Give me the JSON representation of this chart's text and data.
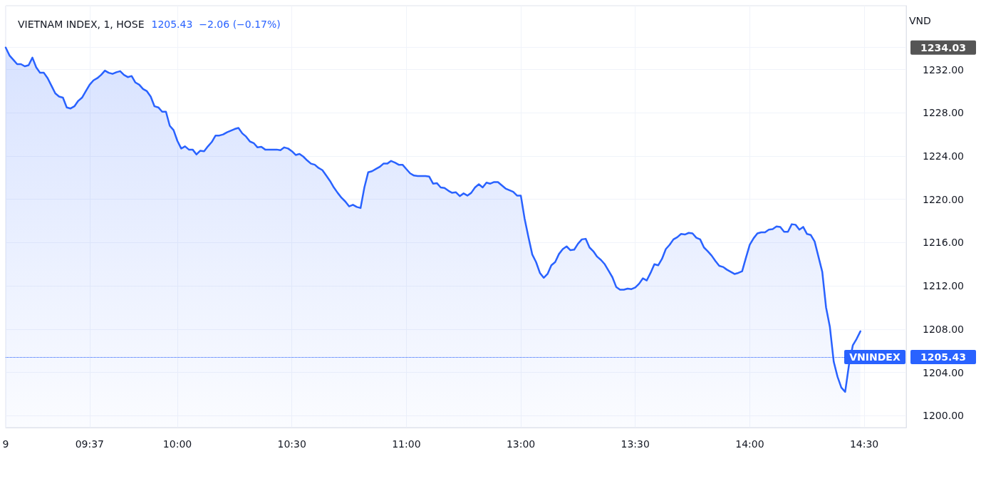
{
  "chart_data": {
    "type": "area",
    "title": "VIETNAM INDEX, 1, HOSE",
    "subtitle": "1205.43  −2.06 (−0.17%)",
    "ylabel": "VND",
    "categories": [
      "9",
      null,
      null,
      null,
      null,
      null,
      null,
      null,
      null,
      null,
      null,
      null,
      null,
      null,
      null,
      null,
      null,
      null,
      null,
      null,
      null,
      null,
      "09:37",
      null,
      null,
      null,
      null,
      null,
      null,
      null,
      null,
      null,
      null,
      null,
      null,
      null,
      null,
      null,
      null,
      null,
      null,
      null,
      null,
      null,
      null,
      "10:00",
      null,
      null,
      null,
      null,
      null,
      null,
      null,
      null,
      null,
      null,
      null,
      null,
      null,
      null,
      null,
      null,
      null,
      null,
      null,
      null,
      null,
      null,
      null,
      null,
      null,
      null,
      null,
      null,
      null,
      "10:30",
      null,
      null,
      null,
      null,
      null,
      null,
      null,
      null,
      null,
      null,
      null,
      null,
      null,
      null,
      null,
      null,
      null,
      null,
      null,
      null,
      null,
      null,
      null,
      null,
      null,
      null,
      null,
      null,
      null,
      "11:00",
      null,
      null,
      null,
      null,
      null,
      null,
      null,
      null,
      null,
      null,
      null,
      null,
      null,
      null,
      null,
      null,
      null,
      null,
      null,
      null,
      null,
      null,
      null,
      null,
      null,
      null,
      null,
      null,
      null,
      "13:00",
      null,
      null,
      null,
      null,
      null,
      null,
      null,
      null,
      null,
      null,
      null,
      null,
      null,
      null,
      null,
      null,
      null,
      null,
      null,
      null,
      null,
      null,
      null,
      null,
      null,
      null,
      null,
      null,
      null,
      "13:30",
      null,
      null,
      null,
      null,
      null,
      null,
      null,
      null,
      null,
      null,
      null,
      null,
      null,
      null,
      null,
      null,
      null,
      null,
      null,
      null,
      null,
      null,
      null,
      null,
      null,
      null,
      null,
      null,
      null,
      "14:00",
      null,
      null,
      null,
      null,
      null,
      null,
      null,
      null,
      null,
      null,
      null,
      null,
      null,
      null,
      null,
      null,
      null,
      null,
      null,
      null,
      null,
      null,
      null,
      null,
      null,
      null,
      null,
      null,
      null,
      "14:30",
      null,
      null,
      null,
      null,
      null,
      null,
      null,
      null,
      null,
      null,
      null
    ],
    "series": [
      {
        "color": "#2962ff",
        "values": [
          1234.03,
          1233.3,
          1232.9,
          1232.5,
          1232.5,
          1232.3,
          1232.4,
          1233.1,
          1232.2,
          1231.7,
          1231.7,
          1231.2,
          1230.5,
          1229.8,
          1229.5,
          1229.4,
          1228.5,
          1228.4,
          1228.6,
          1229.1,
          1229.4,
          1230.0,
          1230.6,
          1231.0,
          1231.2,
          1231.5,
          1231.9,
          1231.7,
          1231.6,
          1231.75,
          1231.85,
          1231.5,
          1231.3,
          1231.4,
          1230.8,
          1230.6,
          1230.2,
          1230.0,
          1229.5,
          1228.6,
          1228.5,
          1228.1,
          1228.1,
          1226.8,
          1226.4,
          1225.4,
          1224.7,
          1224.9,
          1224.6,
          1224.6,
          1224.15,
          1224.5,
          1224.45,
          1224.9,
          1225.3,
          1225.9,
          1225.9,
          1226.0,
          1226.2,
          1226.35,
          1226.5,
          1226.6,
          1226.1,
          1225.8,
          1225.35,
          1225.2,
          1224.8,
          1224.85,
          1224.6,
          1224.6,
          1224.6,
          1224.6,
          1224.55,
          1224.8,
          1224.7,
          1224.45,
          1224.1,
          1224.2,
          1223.95,
          1223.6,
          1223.3,
          1223.2,
          1222.9,
          1222.7,
          1222.2,
          1221.7,
          1221.1,
          1220.6,
          1220.15,
          1219.8,
          1219.35,
          1219.5,
          1219.3,
          1219.2,
          1221.1,
          1222.5,
          1222.6,
          1222.8,
          1223.0,
          1223.3,
          1223.3,
          1223.55,
          1223.4,
          1223.2,
          1223.2,
          1222.8,
          1222.4,
          1222.2,
          1222.15,
          1222.15,
          1222.15,
          1222.1,
          1221.45,
          1221.5,
          1221.1,
          1221.05,
          1220.8,
          1220.6,
          1220.65,
          1220.3,
          1220.55,
          1220.35,
          1220.6,
          1221.1,
          1221.4,
          1221.1,
          1221.55,
          1221.45,
          1221.6,
          1221.6,
          1221.3,
          1221.0,
          1220.85,
          1220.7,
          1220.35,
          1220.35,
          1218.2,
          1216.5,
          1214.9,
          1214.2,
          1213.2,
          1212.75,
          1213.1,
          1213.9,
          1214.2,
          1214.95,
          1215.4,
          1215.65,
          1215.3,
          1215.35,
          1215.9,
          1216.3,
          1216.35,
          1215.55,
          1215.2,
          1214.7,
          1214.4,
          1214.0,
          1213.4,
          1212.8,
          1211.9,
          1211.65,
          1211.65,
          1211.75,
          1211.7,
          1211.85,
          1212.2,
          1212.7,
          1212.5,
          1213.2,
          1214.0,
          1213.9,
          1214.5,
          1215.4,
          1215.8,
          1216.3,
          1216.5,
          1216.8,
          1216.75,
          1216.9,
          1216.85,
          1216.45,
          1216.3,
          1215.55,
          1215.2,
          1214.8,
          1214.3,
          1213.85,
          1213.75,
          1213.5,
          1213.3,
          1213.1,
          1213.2,
          1213.35,
          1214.6,
          1215.8,
          1216.4,
          1216.85,
          1216.95,
          1216.95,
          1217.2,
          1217.25,
          1217.5,
          1217.45,
          1217.0,
          1217.0,
          1217.7,
          1217.65,
          1217.2,
          1217.45,
          1216.8,
          1216.7,
          1216.1,
          1214.7,
          1213.3,
          1210.0,
          1208.2,
          1205.0,
          1203.6,
          1202.6,
          1202.2,
          1204.7,
          1206.5,
          1207.1,
          1207.8,
          null,
          null,
          null,
          null,
          null,
          null,
          null,
          null,
          null,
          null,
          null,
          null
        ]
      }
    ],
    "ylim": [
      1198.9,
      1237.9
    ],
    "yticks": [
      {
        "value": 1200,
        "label": "1200.00"
      },
      {
        "value": 1204,
        "label": "1204.00"
      },
      {
        "value": 1208,
        "label": "1208.00"
      },
      {
        "value": 1212,
        "label": "1212.00"
      },
      {
        "value": 1216,
        "label": "1216.00"
      },
      {
        "value": 1220,
        "label": "1220.00"
      },
      {
        "value": 1224,
        "label": "1224.00"
      },
      {
        "value": 1228,
        "label": "1228.00"
      },
      {
        "value": 1232,
        "label": "1232.00"
      },
      {
        "value": 1234.03,
        "label": "1234.03"
      },
      {
        "value": 1205.43,
        "label": "1205.43"
      }
    ],
    "ref_lines": [
      {
        "axis": "y",
        "value": 1205.43,
        "label": "VNINDEX",
        "color": "#2962ff",
        "line_style": "dotted"
      }
    ],
    "grid": true,
    "marker": "none",
    "line_style": "solid"
  }
}
